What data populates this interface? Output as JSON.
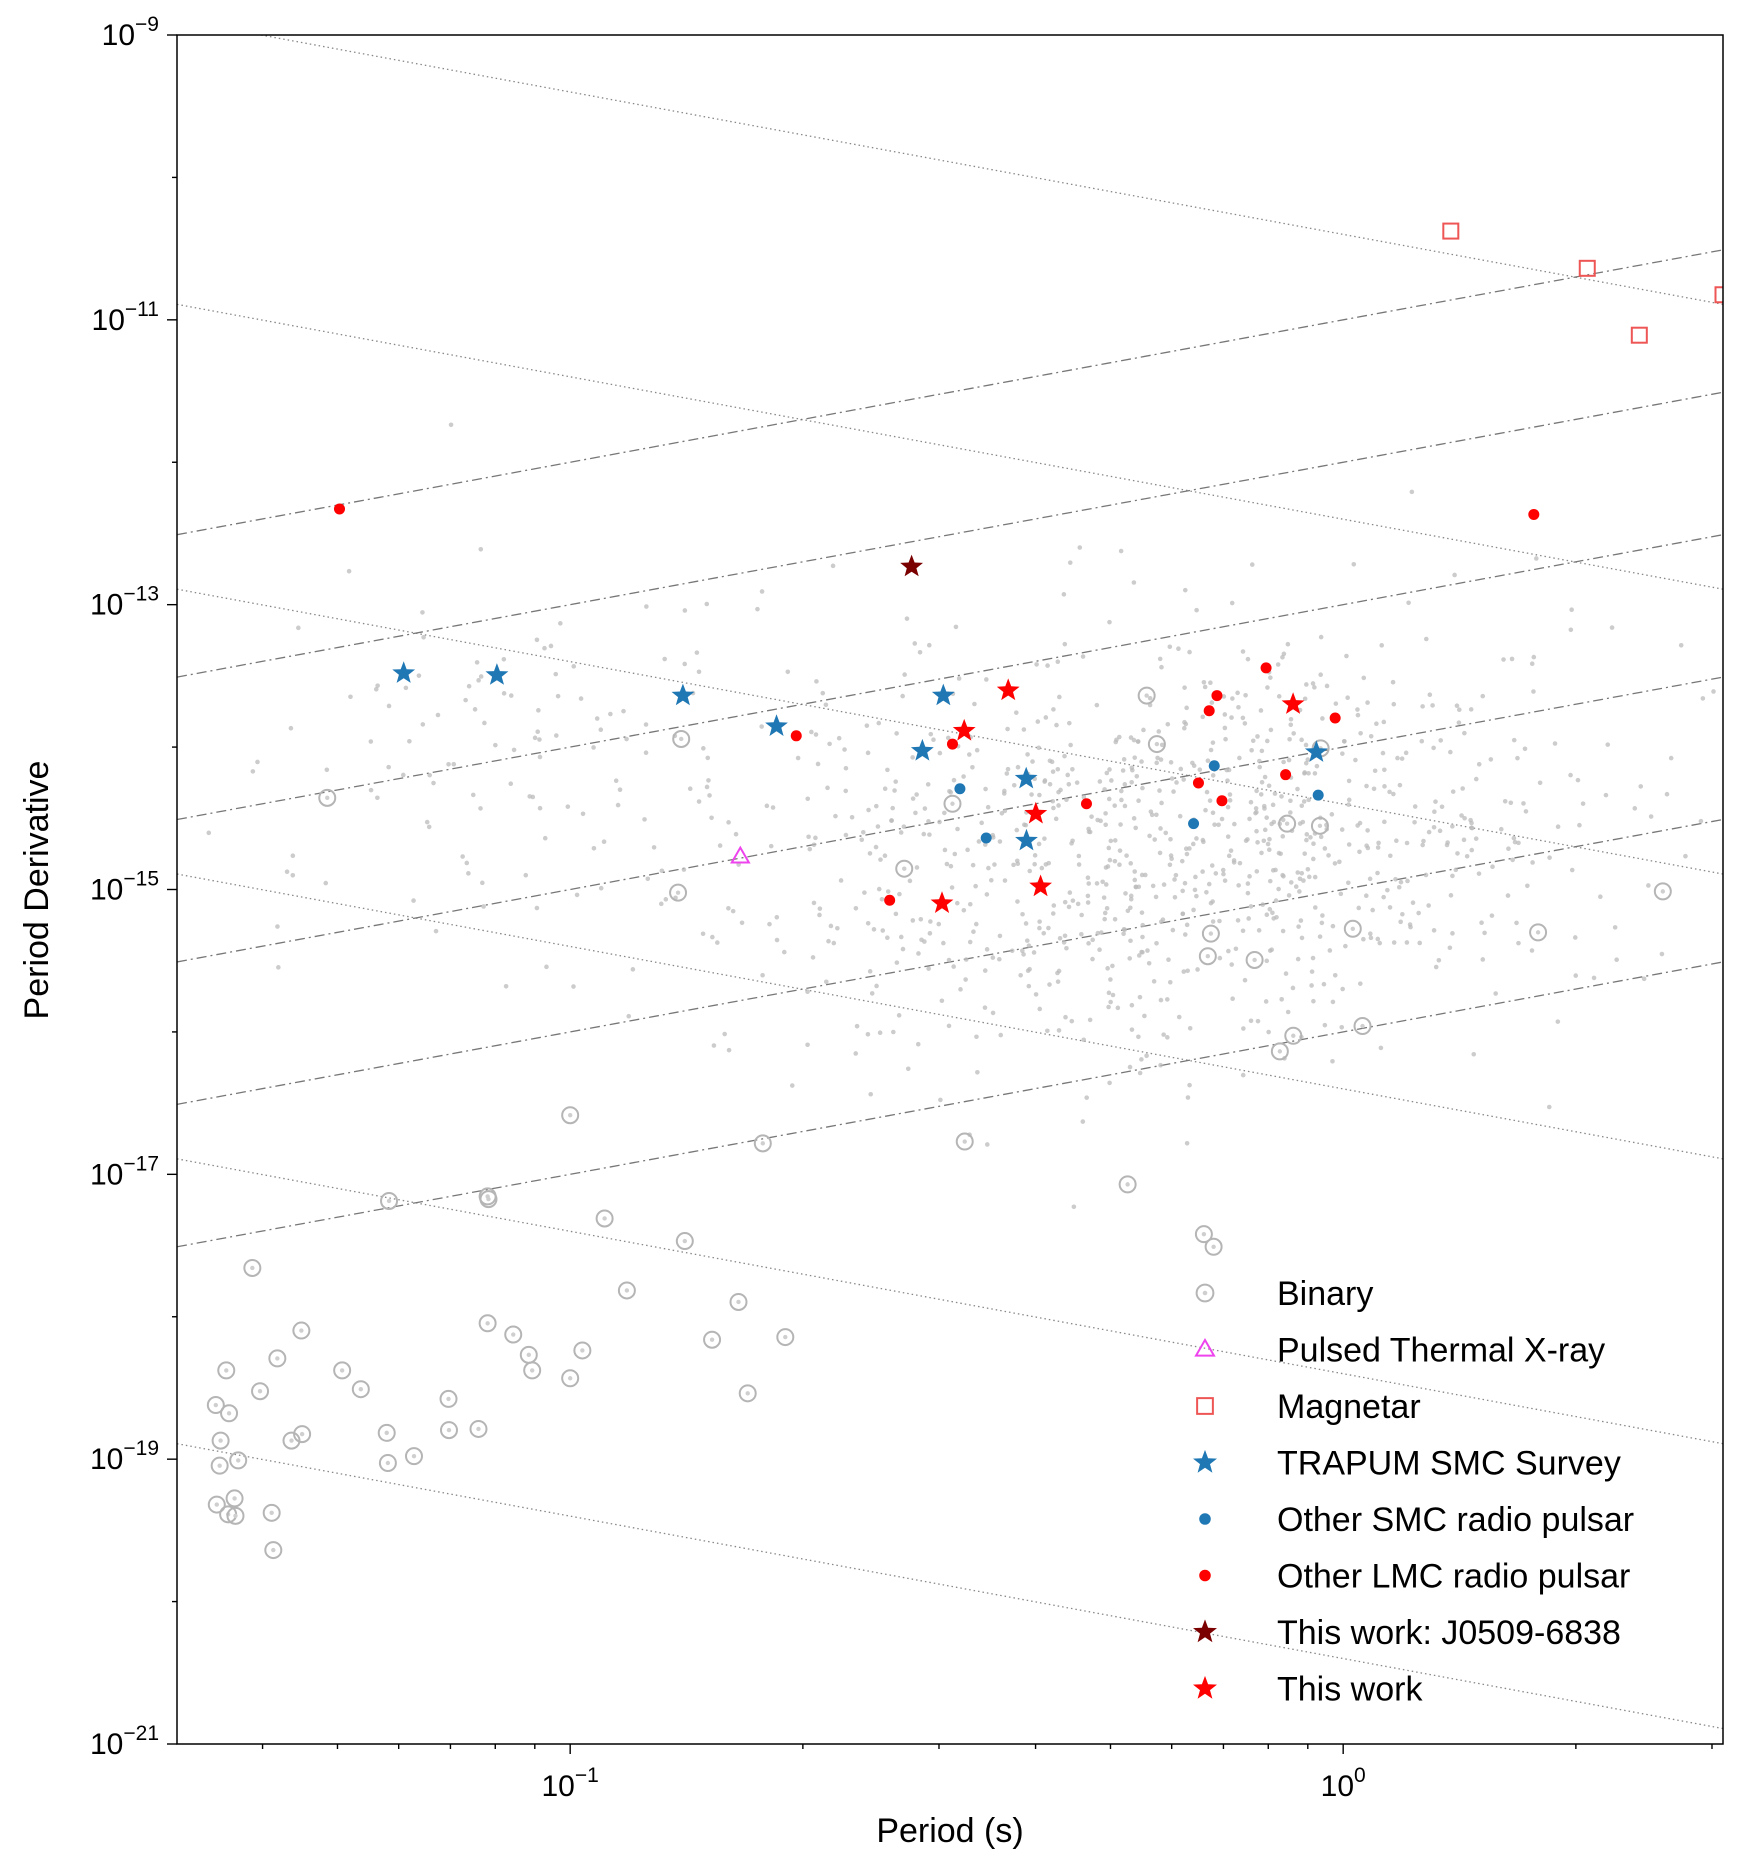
{
  "chart_data": {
    "type": "scatter",
    "title": "",
    "xlabel": "Period (s)",
    "ylabel": "Period Derivative",
    "xscale": "log",
    "yscale": "log",
    "xlim": [
      0.031,
      3.1
    ],
    "ylim": [
      1e-21,
      1e-09
    ],
    "x_ticks": [
      {
        "value": 0.1,
        "base": "10",
        "exp": "−1"
      },
      {
        "value": 1,
        "base": "10",
        "exp": "0"
      }
    ],
    "y_ticks": [
      {
        "value": 1e-09,
        "base": "10",
        "exp": "−9"
      },
      {
        "value": 1e-11,
        "base": "10",
        "exp": "−11"
      },
      {
        "value": 1e-13,
        "base": "10",
        "exp": "−13"
      },
      {
        "value": 1e-15,
        "base": "10",
        "exp": "−15"
      },
      {
        "value": 1e-17,
        "base": "10",
        "exp": "−17"
      },
      {
        "value": 1e-19,
        "base": "10",
        "exp": "−19"
      },
      {
        "value": 1e-21,
        "base": "10",
        "exp": "−21"
      }
    ],
    "legend_position": "lower-right",
    "reference_lines": {
      "characteristic_age_lines": {
        "style": "dotted",
        "color": "#888888",
        "log_intercepts_at_1s": [
          -10.4,
          -12.4,
          -14.4,
          -16.4,
          -18.4,
          -20.4
        ]
      },
      "magnetic_field_lines": {
        "style": "dash-dot",
        "color": "#777777",
        "log_intercepts_at_1s": [
          -11.0,
          -12.0,
          -13.0,
          -14.0,
          -15.0,
          -16.0
        ]
      }
    },
    "series": [
      {
        "name": "Background pulsars",
        "legend": false,
        "marker": "dot-small",
        "color": "#bbbbbb",
        "generated": {
          "count": 1100,
          "seed": 7
        }
      },
      {
        "name": "Binary",
        "marker": "circle-open",
        "color": "#b5b5b5",
        "points": [
          [
            0.0485,
            4.4e-15
          ],
          [
            0.0359,
            4.2e-19
          ],
          [
            0.0388,
            2.2e-18
          ],
          [
            0.0348,
            2.4e-19
          ],
          [
            0.0353,
            1.35e-19
          ],
          [
            0.0352,
            9e-20
          ],
          [
            0.0362,
            2.1e-19
          ],
          [
            0.0372,
            9.8e-20
          ],
          [
            0.0349,
            4.8e-20
          ],
          [
            0.0368,
            5.3e-20
          ],
          [
            0.0361,
            4.1e-20
          ],
          [
            0.0369,
            4e-20
          ],
          [
            0.0397,
            3e-19
          ],
          [
            0.0411,
            4.2e-20
          ],
          [
            0.0413,
            2.3e-20
          ],
          [
            0.0418,
            5.1e-19
          ],
          [
            0.0436,
            1.35e-19
          ],
          [
            0.045,
            1.5e-19
          ],
          [
            0.0449,
            8e-19
          ],
          [
            0.0507,
            4.2e-19
          ],
          [
            0.0536,
            3.1e-19
          ],
          [
            0.0581,
            9.4e-20
          ],
          [
            0.0579,
            1.53e-19
          ],
          [
            0.0583,
            6.5e-18
          ],
          [
            0.0628,
            1.05e-19
          ],
          [
            0.0697,
            1.6e-19
          ],
          [
            0.0696,
            2.65e-19
          ],
          [
            0.0761,
            1.63e-19
          ],
          [
            0.0782,
            7e-18
          ],
          [
            0.0782,
            9e-19
          ],
          [
            0.0784,
            6.7e-18
          ],
          [
            0.0844,
            7.5e-19
          ],
          [
            0.0884,
            5.4e-19
          ],
          [
            0.0893,
            4.2e-19
          ],
          [
            0.1,
            2.6e-17
          ],
          [
            0.1,
            3.7e-19
          ],
          [
            0.1037,
            5.8e-19
          ],
          [
            0.1108,
            4.9e-18
          ],
          [
            0.1184,
            1.53e-18
          ],
          [
            0.1379,
            9.5e-16
          ],
          [
            0.1392,
            1.14e-14
          ],
          [
            0.1407,
            3.4e-18
          ],
          [
            0.1526,
            6.9e-19
          ],
          [
            0.1651,
            1.27e-18
          ],
          [
            0.1697,
            2.9e-19
          ],
          [
            0.1775,
            1.65e-17
          ],
          [
            0.1898,
            7.2e-19
          ],
          [
            0.2705,
            1.4e-15
          ],
          [
            0.3123,
            4e-15
          ],
          [
            0.3239,
            1.7e-17
          ],
          [
            0.5262,
            8.5e-18
          ],
          [
            0.5569,
            2.3e-14
          ],
          [
            0.5741,
            1.05e-14
          ],
          [
            0.6604,
            3.8e-18
          ],
          [
            0.6682,
            3.4e-16
          ],
          [
            0.6798,
            3.1e-18
          ],
          [
            0.6743,
            4.9e-16
          ],
          [
            0.7681,
            3.2e-16
          ],
          [
            0.8281,
            7.3e-17
          ],
          [
            0.8462,
            2.9e-15
          ],
          [
            0.8619,
            9.4e-17
          ],
          [
            0.9331,
            2.8e-15
          ],
          [
            0.9351,
            9.8e-15
          ],
          [
            1.0291,
            5.3e-16
          ],
          [
            1.0593,
            1.1e-16
          ],
          [
            1.7871,
            5e-16
          ],
          [
            2.5913,
            9.7e-16
          ]
        ]
      },
      {
        "name": "Pulsed Thermal X-ray",
        "marker": "triangle-open",
        "color": "#ee44ee",
        "points": [
          [
            0.166,
            1.7e-15
          ]
        ]
      },
      {
        "name": "Magnetar",
        "marker": "square-open",
        "color": "#ee5555",
        "points": [
          [
            1.378,
            4.2e-11
          ],
          [
            2.069,
            2.3e-11
          ],
          [
            2.416,
            7.8e-12
          ],
          [
            3.1,
            1.5e-11
          ]
        ]
      },
      {
        "name": "TRAPUM SMC Survey",
        "marker": "star",
        "color": "#1f77b4",
        "points": [
          [
            0.0609,
            3.3e-14
          ],
          [
            0.0804,
            3.2e-14
          ],
          [
            0.1399,
            2.3e-14
          ],
          [
            0.1849,
            1.4e-14
          ],
          [
            0.2855,
            9.4e-15
          ],
          [
            0.3039,
            2.3e-14
          ],
          [
            0.389,
            6e-15
          ],
          [
            0.3893,
            2.2e-15
          ],
          [
            0.9232,
            9.2e-15
          ]
        ]
      },
      {
        "name": "Other SMC radio pulsar",
        "marker": "dot",
        "color": "#1f77b4",
        "points": [
          [
            0.3193,
            5.1e-15
          ],
          [
            0.3453,
            2.3e-15
          ],
          [
            0.6404,
            2.9e-15
          ],
          [
            0.6811,
            7.4e-15
          ],
          [
            0.9283,
            4.6e-15
          ]
        ]
      },
      {
        "name": "Other LMC radio pulsar",
        "marker": "dot",
        "color": "#ff0000",
        "points": [
          [
            0.0503,
            4.7e-13
          ],
          [
            0.1961,
            1.2e-14
          ],
          [
            0.259,
            8.4e-16
          ],
          [
            0.3123,
            1.05e-14
          ],
          [
            0.4655,
            4e-15
          ],
          [
            0.6498,
            5.6e-15
          ],
          [
            0.6709,
            1.8e-14
          ],
          [
            0.6866,
            2.3e-14
          ],
          [
            0.6969,
            4.2e-15
          ],
          [
            0.7948,
            3.6e-14
          ],
          [
            0.8424,
            6.4e-15
          ],
          [
            0.9764,
            1.6e-14
          ],
          [
            1.7645,
            4.3e-13
          ]
        ]
      },
      {
        "name": "This work: J0509-6838",
        "marker": "star",
        "color": "#7b0000",
        "points": [
          [
            0.2765,
            1.85e-13
          ]
        ]
      },
      {
        "name": "This work",
        "marker": "star",
        "color": "#ff0000",
        "points": [
          [
            0.3027,
            8e-16
          ],
          [
            0.3234,
            1.3e-14
          ],
          [
            0.3687,
            2.5e-14
          ],
          [
            0.4003,
            3.4e-15
          ],
          [
            0.406,
            1.05e-15
          ],
          [
            0.8613,
            2e-14
          ]
        ]
      }
    ]
  }
}
